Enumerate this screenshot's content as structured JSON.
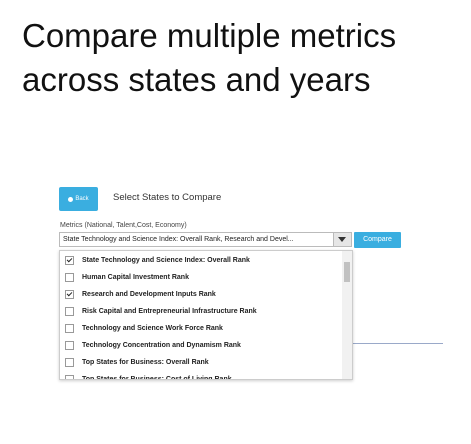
{
  "slide": {
    "title": "Compare multiple metrics across states and years"
  },
  "app": {
    "back_button": "Back",
    "heading": "Select States to Compare",
    "metrics_label": "Metrics (National, Talent,Cost, Economy)",
    "dropdown_value": "State Technology and Science Index: Overall Rank, Research and Devel...",
    "compare_button": "Compare",
    "options": [
      {
        "label": "State Technology and Science Index: Overall Rank",
        "checked": true
      },
      {
        "label": "Human Capital Investment Rank",
        "checked": false
      },
      {
        "label": "Research and Development Inputs Rank",
        "checked": true
      },
      {
        "label": "Risk Capital and Entrepreneurial Infrastructure Rank",
        "checked": false
      },
      {
        "label": "Technology and Science Work Force Rank",
        "checked": false
      },
      {
        "label": "Technology Concentration and Dynamism Rank",
        "checked": false
      },
      {
        "label": "Top States for Business: Overall Rank",
        "checked": false
      },
      {
        "label": "Top States for Business: Cost of Living Rank",
        "checked": false
      }
    ]
  }
}
